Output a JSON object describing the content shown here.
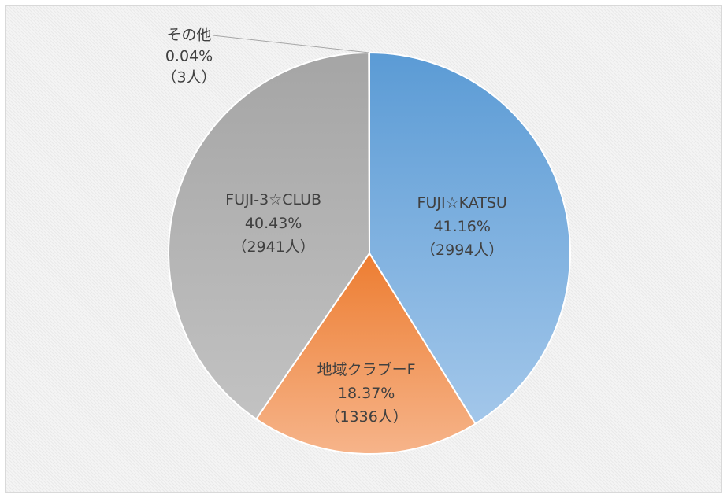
{
  "chart_data": {
    "type": "pie",
    "categories": [
      "FUJI☆KATSU",
      "地域クラブーF",
      "FUJI-3☆CLUB",
      "その他"
    ],
    "values": [
      41.16,
      18.37,
      40.43,
      0.04
    ],
    "value_labels": [
      "41.16%",
      "18.37%",
      "40.43%",
      "0.04%"
    ],
    "counts": [
      2994,
      1336,
      2941,
      3
    ],
    "count_labels": [
      "（2994人）",
      "（1336人）",
      "（2941人）",
      "（3人）"
    ],
    "colors": [
      [
        "#5b9bd5",
        "#a3c7ea"
      ],
      [
        "#ed7d31",
        "#f6b48a"
      ],
      [
        "#a5a5a5",
        "#c2c2c2"
      ],
      [
        "#a5a5a5",
        "#c2c2c2"
      ]
    ]
  }
}
